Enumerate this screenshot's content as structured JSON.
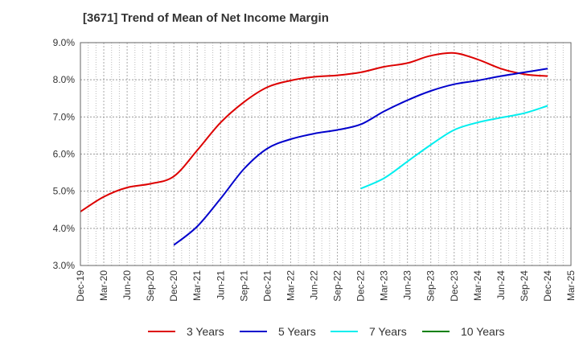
{
  "chart_data": {
    "type": "line",
    "title": "[3671]  Trend of Mean of Net Income Margin",
    "xlabel": "",
    "ylabel": "",
    "x": [
      "Dec-19",
      "Mar-20",
      "Jun-20",
      "Sep-20",
      "Dec-20",
      "Mar-21",
      "Jun-21",
      "Sep-21",
      "Dec-21",
      "Mar-22",
      "Jun-22",
      "Sep-22",
      "Dec-22",
      "Mar-23",
      "Jun-23",
      "Sep-23",
      "Dec-23",
      "Mar-24",
      "Jun-24",
      "Sep-24",
      "Dec-24",
      "Mar-25"
    ],
    "ylim": [
      3.0,
      9.0
    ],
    "yticks": [
      "3.0%",
      "4.0%",
      "5.0%",
      "6.0%",
      "7.0%",
      "8.0%",
      "9.0%"
    ],
    "ytick_values": [
      3.0,
      4.0,
      5.0,
      6.0,
      7.0,
      8.0,
      9.0
    ],
    "grid": true,
    "legend_position": "bottom",
    "series": [
      {
        "name": "3 Years",
        "color": "#dd0000",
        "values": [
          4.45,
          4.85,
          5.1,
          5.2,
          5.4,
          6.1,
          6.85,
          7.4,
          7.8,
          7.98,
          8.08,
          8.12,
          8.2,
          8.35,
          8.45,
          8.65,
          8.72,
          8.55,
          8.3,
          8.15,
          8.1,
          null
        ]
      },
      {
        "name": "5 Years",
        "color": "#0000cc",
        "values": [
          null,
          null,
          null,
          null,
          3.55,
          4.05,
          4.8,
          5.6,
          6.15,
          6.4,
          6.55,
          6.65,
          6.8,
          7.15,
          7.45,
          7.7,
          7.88,
          7.98,
          8.1,
          8.2,
          8.3,
          null
        ]
      },
      {
        "name": "7 Years",
        "color": "#00eeee",
        "values": [
          null,
          null,
          null,
          null,
          null,
          null,
          null,
          null,
          null,
          null,
          null,
          null,
          5.07,
          5.35,
          5.8,
          6.25,
          6.65,
          6.85,
          6.98,
          7.1,
          7.3,
          null
        ]
      },
      {
        "name": "10 Years",
        "color": "#008000",
        "values": [
          null,
          null,
          null,
          null,
          null,
          null,
          null,
          null,
          null,
          null,
          null,
          null,
          null,
          null,
          null,
          null,
          null,
          null,
          null,
          null,
          null,
          null
        ]
      }
    ]
  }
}
